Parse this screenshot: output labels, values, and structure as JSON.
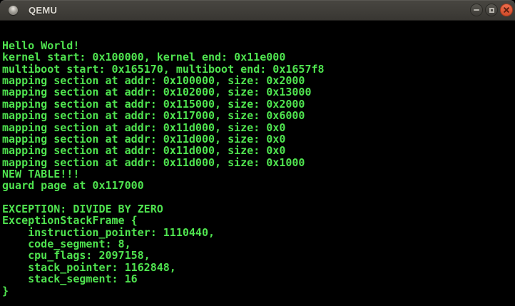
{
  "window": {
    "title": "QEMU",
    "controls": [
      "minimize",
      "maximize",
      "close"
    ]
  },
  "colors": {
    "terminal_green": "#4fe34f",
    "terminal_background": "#000000",
    "titlebar_background": "#403e39",
    "close_button": "#dd5636"
  },
  "screen": {
    "lines": [
      "Hello World!",
      "kernel start: 0x100000, kernel end: 0x11e000",
      "multiboot start: 0x165170, multiboot end: 0x1657f8",
      "mapping section at addr: 0x100000, size: 0x2000",
      "mapping section at addr: 0x102000, size: 0x13000",
      "mapping section at addr: 0x115000, size: 0x2000",
      "mapping section at addr: 0x117000, size: 0x6000",
      "mapping section at addr: 0x11d000, size: 0x0",
      "mapping section at addr: 0x11d000, size: 0x0",
      "mapping section at addr: 0x11d000, size: 0x0",
      "mapping section at addr: 0x11d000, size: 0x1000",
      "NEW TABLE!!!",
      "guard page at 0x117000",
      "",
      "EXCEPTION: DIVIDE BY ZERO",
      "ExceptionStackFrame {",
      "    instruction_pointer: 1110440,",
      "    code_segment: 8,",
      "    cpu_flags: 2097158,",
      "    stack_pointer: 1162848,",
      "    stack_segment: 16",
      "}"
    ]
  }
}
